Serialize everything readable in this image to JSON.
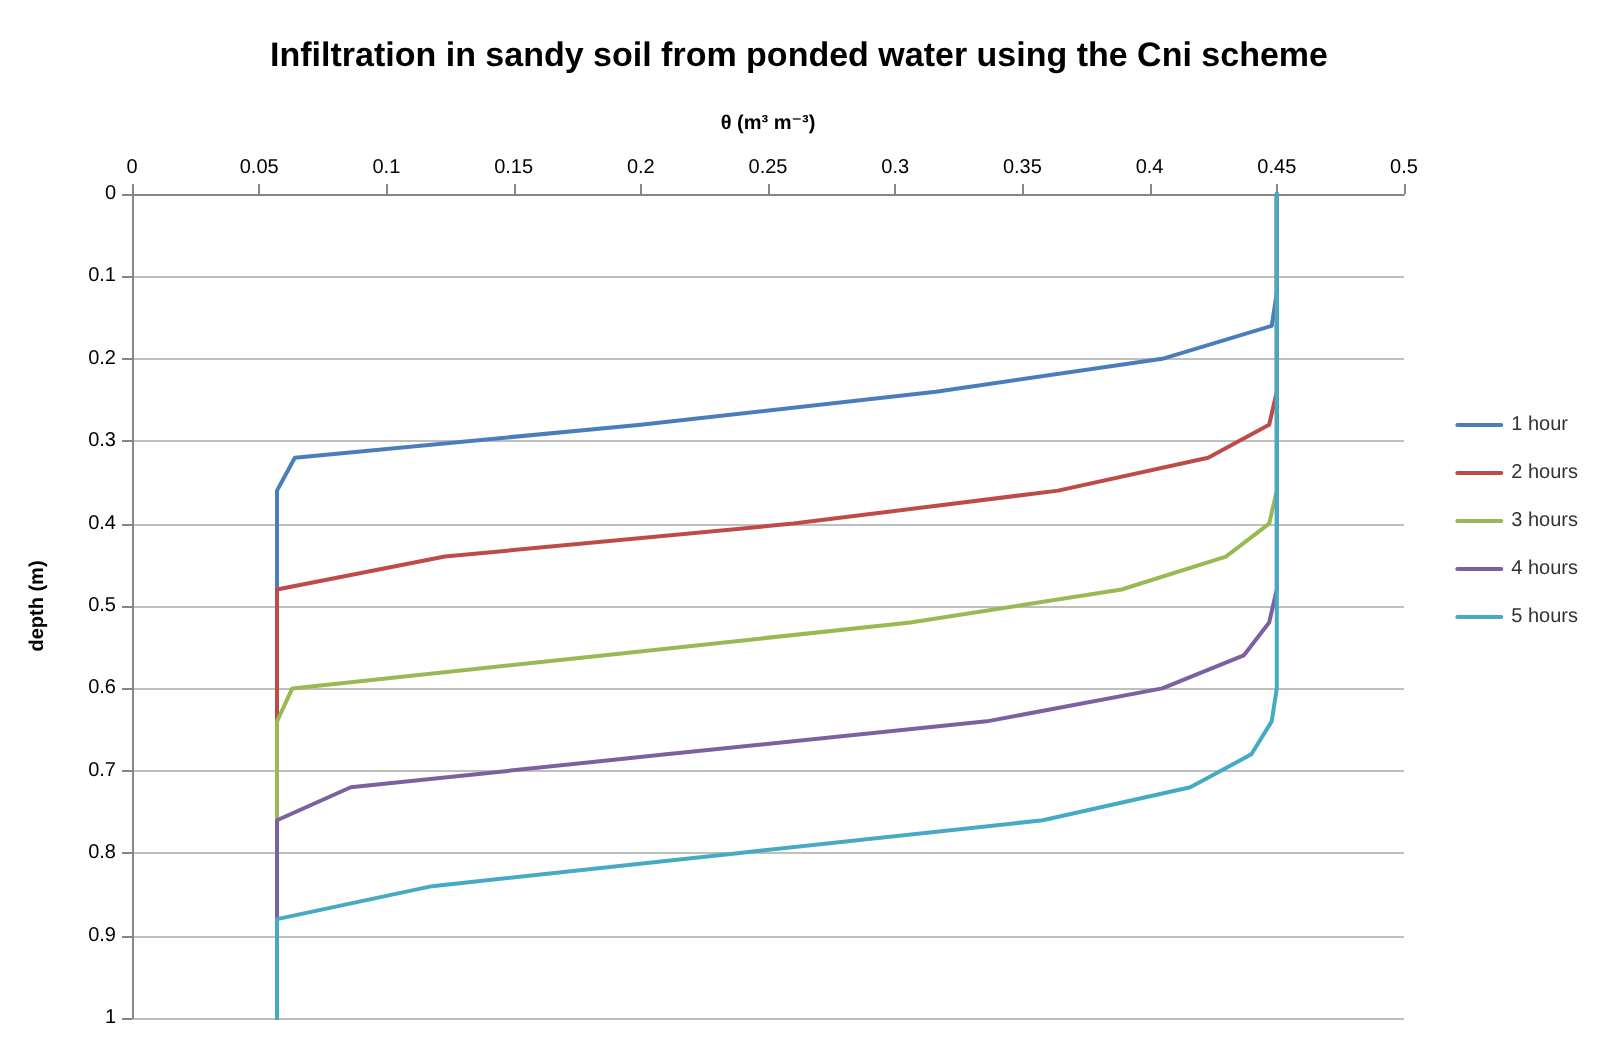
{
  "chart_data": {
    "type": "line",
    "title": "Infiltration in sandy soil from ponded water using the Cni scheme",
    "xlabel": "θ (m³ m⁻³)",
    "ylabel": "depth (m)",
    "xlim": [
      0,
      0.5
    ],
    "xticks": [
      0,
      0.05,
      0.1,
      0.15,
      0.2,
      0.25,
      0.3,
      0.35,
      0.4,
      0.45,
      0.5
    ],
    "ylim": [
      1,
      0
    ],
    "yticks": [
      0,
      0.1,
      0.2,
      0.3,
      0.4,
      0.5,
      0.6,
      0.7,
      0.8,
      0.9,
      1
    ],
    "grid": "y",
    "legend": "right",
    "marker": "none",
    "line_style": "solid",
    "series": [
      {
        "name": "1 hour",
        "color": "#4a7ebb",
        "x": [
          0.45,
          0.45,
          0.448,
          0.405,
          0.316,
          0.2,
          0.064,
          0.057,
          0.057
        ],
        "values": [
          0,
          0.12,
          0.16,
          0.2,
          0.24,
          0.28,
          0.32,
          0.36,
          1
        ]
      },
      {
        "name": "2 hours",
        "color": "#be4b48",
        "x": [
          0.45,
          0.45,
          0.447,
          0.423,
          0.364,
          0.26,
          0.123,
          0.057,
          0.057
        ],
        "values": [
          0,
          0.24,
          0.28,
          0.32,
          0.36,
          0.4,
          0.44,
          0.48,
          1
        ]
      },
      {
        "name": "3 hours",
        "color": "#98b954",
        "x": [
          0.45,
          0.45,
          0.447,
          0.43,
          0.389,
          0.306,
          0.185,
          0.063,
          0.057,
          0.057
        ],
        "values": [
          0,
          0.36,
          0.4,
          0.44,
          0.48,
          0.52,
          0.56,
          0.6,
          0.64,
          1
        ]
      },
      {
        "name": "4 hours",
        "color": "#7d60a0",
        "x": [
          0.45,
          0.45,
          0.447,
          0.437,
          0.405,
          0.336,
          0.21,
          0.086,
          0.057,
          0.057
        ],
        "values": [
          0,
          0.48,
          0.52,
          0.56,
          0.6,
          0.64,
          0.68,
          0.72,
          0.76,
          1
        ]
      },
      {
        "name": "5 hours",
        "color": "#46aac5",
        "x": [
          0.45,
          0.45,
          0.448,
          0.44,
          0.416,
          0.358,
          0.238,
          0.118,
          0.057,
          0.057
        ],
        "values": [
          0,
          0.6,
          0.64,
          0.68,
          0.72,
          0.76,
          0.8,
          0.84,
          0.88,
          1
        ]
      }
    ]
  }
}
